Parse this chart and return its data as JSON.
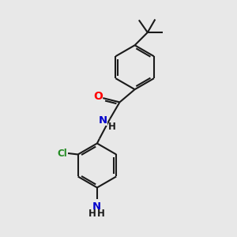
{
  "background_color": "#e8e8e8",
  "bond_color": "#1a1a1a",
  "atom_colors": {
    "O": "#ff0000",
    "N": "#0000cc",
    "Cl": "#228B22",
    "C": "#1a1a1a",
    "H": "#1a1a1a"
  },
  "lw": 1.5,
  "fs": 8.5
}
